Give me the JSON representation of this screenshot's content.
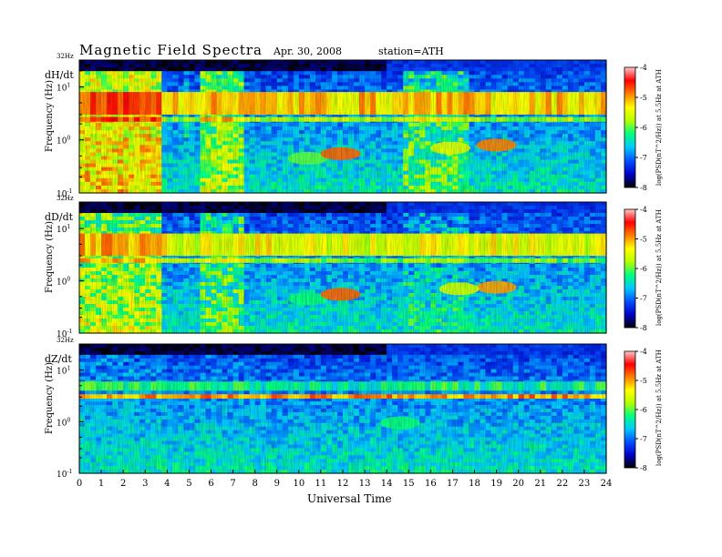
{
  "header": {
    "title": "Magnetic  Field  Spectra",
    "date": "Apr. 30, 2008",
    "station": "station=ATH"
  },
  "chart_data": {
    "type": "heatmap",
    "xlabel": "Universal Time",
    "x_ticks": [
      "0",
      "1",
      "2",
      "3",
      "4",
      "5",
      "6",
      "7",
      "8",
      "9",
      "10",
      "11",
      "12",
      "13",
      "14",
      "15",
      "16",
      "17",
      "18",
      "19",
      "20",
      "21",
      "22",
      "23",
      "24"
    ],
    "xlim": [
      0,
      24
    ],
    "ylabel": "Frequency  (Hz)",
    "y_scale": "log",
    "ylim": [
      0.1,
      32
    ],
    "y_ticks": [
      {
        "base": "10",
        "exp": "-1",
        "value": 0.1
      },
      {
        "base": "10",
        "exp": "0",
        "value": 1
      },
      {
        "base": "10",
        "exp": "1",
        "value": 10
      }
    ],
    "y_top_label": "32Hz",
    "colorbar": {
      "label": "log(PSD(nT^2/Hz)) at 5.5Hz at ATH",
      "ticks": [
        "-4",
        "-5",
        "-6",
        "-7",
        "-8"
      ],
      "range": [
        -8,
        -4
      ],
      "colors": [
        "#000000",
        "#0000c8",
        "#0050ff",
        "#00c8ff",
        "#00ff80",
        "#b4ff00",
        "#ffff00",
        "#ff8000",
        "#ff0000",
        "#ffc8c8"
      ]
    },
    "panels": [
      {
        "name": "dH/dt",
        "bands": [
          {
            "f_lo": 3.0,
            "f_hi": 8.0,
            "level": -5.2
          },
          {
            "f_lo": 2.2,
            "f_hi": 2.7,
            "level": -5.8
          }
        ],
        "activity": [
          {
            "t0": 0.0,
            "t1": 3.8,
            "level": -4.8
          },
          {
            "t0": 4.7,
            "t1": 5.1,
            "level": -6.0
          },
          {
            "t0": 5.6,
            "t1": 7.5,
            "level": -5.3
          },
          {
            "t0": 14.8,
            "t1": 17.8,
            "level": -5.6
          }
        ],
        "blobs": [
          {
            "t": 10.4,
            "f": 0.45,
            "level": -6.0
          },
          {
            "t": 11.9,
            "f": 0.55,
            "level": -4.8
          },
          {
            "t": 19.0,
            "f": 0.8,
            "level": -4.9
          },
          {
            "t": 16.9,
            "f": 0.7,
            "level": -5.5
          }
        ]
      },
      {
        "name": "dD/dt",
        "bands": [
          {
            "f_lo": 3.0,
            "f_hi": 8.0,
            "level": -5.5
          },
          {
            "f_lo": 2.2,
            "f_hi": 2.7,
            "level": -5.9
          }
        ],
        "activity": [
          {
            "t0": 0.0,
            "t1": 3.8,
            "level": -5.2
          },
          {
            "t0": 4.7,
            "t1": 5.1,
            "level": -6.2
          },
          {
            "t0": 5.6,
            "t1": 7.5,
            "level": -5.6
          },
          {
            "t0": 14.8,
            "t1": 17.8,
            "level": -6.0
          }
        ],
        "blobs": [
          {
            "t": 10.4,
            "f": 0.45,
            "level": -6.2
          },
          {
            "t": 11.9,
            "f": 0.55,
            "level": -4.8
          },
          {
            "t": 19.0,
            "f": 0.75,
            "level": -5.0
          },
          {
            "t": 17.3,
            "f": 0.7,
            "level": -5.6
          }
        ]
      },
      {
        "name": "dZ/dt",
        "bands": [
          {
            "f_lo": 2.8,
            "f_hi": 3.4,
            "level": -5.0
          },
          {
            "f_lo": 4.0,
            "f_hi": 6.0,
            "level": -6.3
          }
        ],
        "activity": [
          {
            "t0": 0.0,
            "t1": 3.8,
            "level": -6.3
          },
          {
            "t0": 5.6,
            "t1": 7.5,
            "level": -6.4
          },
          {
            "t0": 14.8,
            "t1": 17.8,
            "level": -6.5
          }
        ],
        "blobs": [
          {
            "t": 14.6,
            "f": 0.95,
            "level": -6.2
          }
        ]
      }
    ]
  }
}
